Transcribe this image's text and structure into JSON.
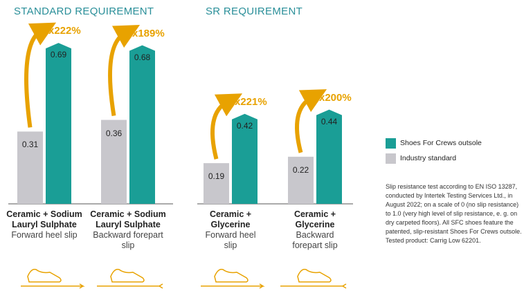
{
  "chart_data": [
    {
      "type": "bar",
      "title": "STANDARD REQUIREMENT",
      "categories": [
        "Ceramic + Sodium Lauryl Sulphate",
        "Ceramic + Sodium Lauryl Sulphate"
      ],
      "slip_types": [
        "Forward heel slip",
        "Backward forepart slip"
      ],
      "annotations": [
        "x222%",
        "x189%"
      ],
      "series": [
        {
          "name": "Industry standard",
          "color": "#c8c7cc",
          "values": [
            0.31,
            0.36
          ]
        },
        {
          "name": "Shoes For Crews outsole",
          "color": "#1a9e96",
          "values": [
            0.69,
            0.68
          ]
        }
      ],
      "ylim": [
        0,
        0.8
      ]
    },
    {
      "type": "bar",
      "title": "SR REQUIREMENT",
      "categories": [
        "Ceramic + Glycerine",
        "Ceramic + Glycerine"
      ],
      "slip_types": [
        "Forward heel slip",
        "Backward forepart slip"
      ],
      "annotations": [
        "x221%",
        "x200%"
      ],
      "series": [
        {
          "color": "#c8c7cc",
          "values": [
            0.19,
            0.22
          ]
        },
        {
          "color": "#1a9e96",
          "values": [
            0.42,
            0.44
          ]
        }
      ],
      "ylim": [
        0,
        0.8
      ]
    }
  ],
  "footnote": "Slip resistance test according to EN ISO 13287, conducted by Intertek Testing Services Ltd., in August 2022; on a scale of 0 (no slip resistance) to 1.0 (very high level of slip resistance, e. g. on dry carpeted floors). All SFC shoes feature the patented, slip-resistant Shoes For Crews outsole. Tested product: Carrig Low 62201."
}
